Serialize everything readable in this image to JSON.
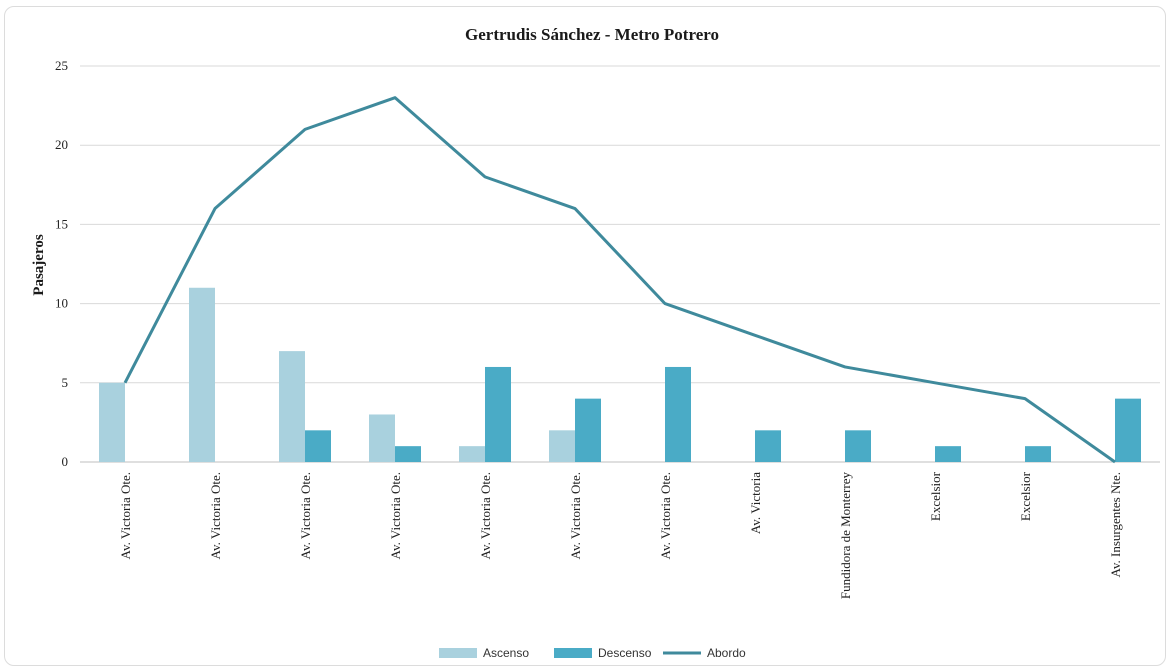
{
  "chart_data": {
    "type": "bar",
    "title": "Gertrudis Sánchez - Metro Potrero",
    "ylabel": "Pasajeros",
    "xlabel": "",
    "ylim": [
      0,
      25
    ],
    "yticks": [
      0,
      5,
      10,
      15,
      20,
      25
    ],
    "grid": true,
    "legend_position": "bottom",
    "categories": [
      "Av. Victoria Ote.",
      "Av. Victoria Ote.",
      "Av. Victoria Ote.",
      "Av. Victoria Ote.",
      "Av. Victoria Ote.",
      "Av. Victoria Ote.",
      "Av. Victoria Ote.",
      "Av. Victoria",
      "Fundidora de Monterrey",
      "Excelsior",
      "Excelsior",
      "Av. Insurgentes Nte."
    ],
    "series": [
      {
        "name": "Ascenso",
        "type": "bar",
        "color": "#a9d1de",
        "values": [
          5,
          11,
          7,
          3,
          1,
          2,
          0,
          0,
          0,
          0,
          0,
          0
        ]
      },
      {
        "name": "Descenso",
        "type": "bar",
        "color": "#4aabc6",
        "values": [
          0,
          0,
          2,
          1,
          6,
          4,
          6,
          2,
          2,
          1,
          1,
          4
        ]
      },
      {
        "name": "Abordo",
        "type": "line",
        "color": "#3f8a9c",
        "values": [
          5,
          16,
          21,
          23,
          18,
          16,
          10,
          8,
          6,
          5,
          4,
          0
        ]
      }
    ]
  }
}
